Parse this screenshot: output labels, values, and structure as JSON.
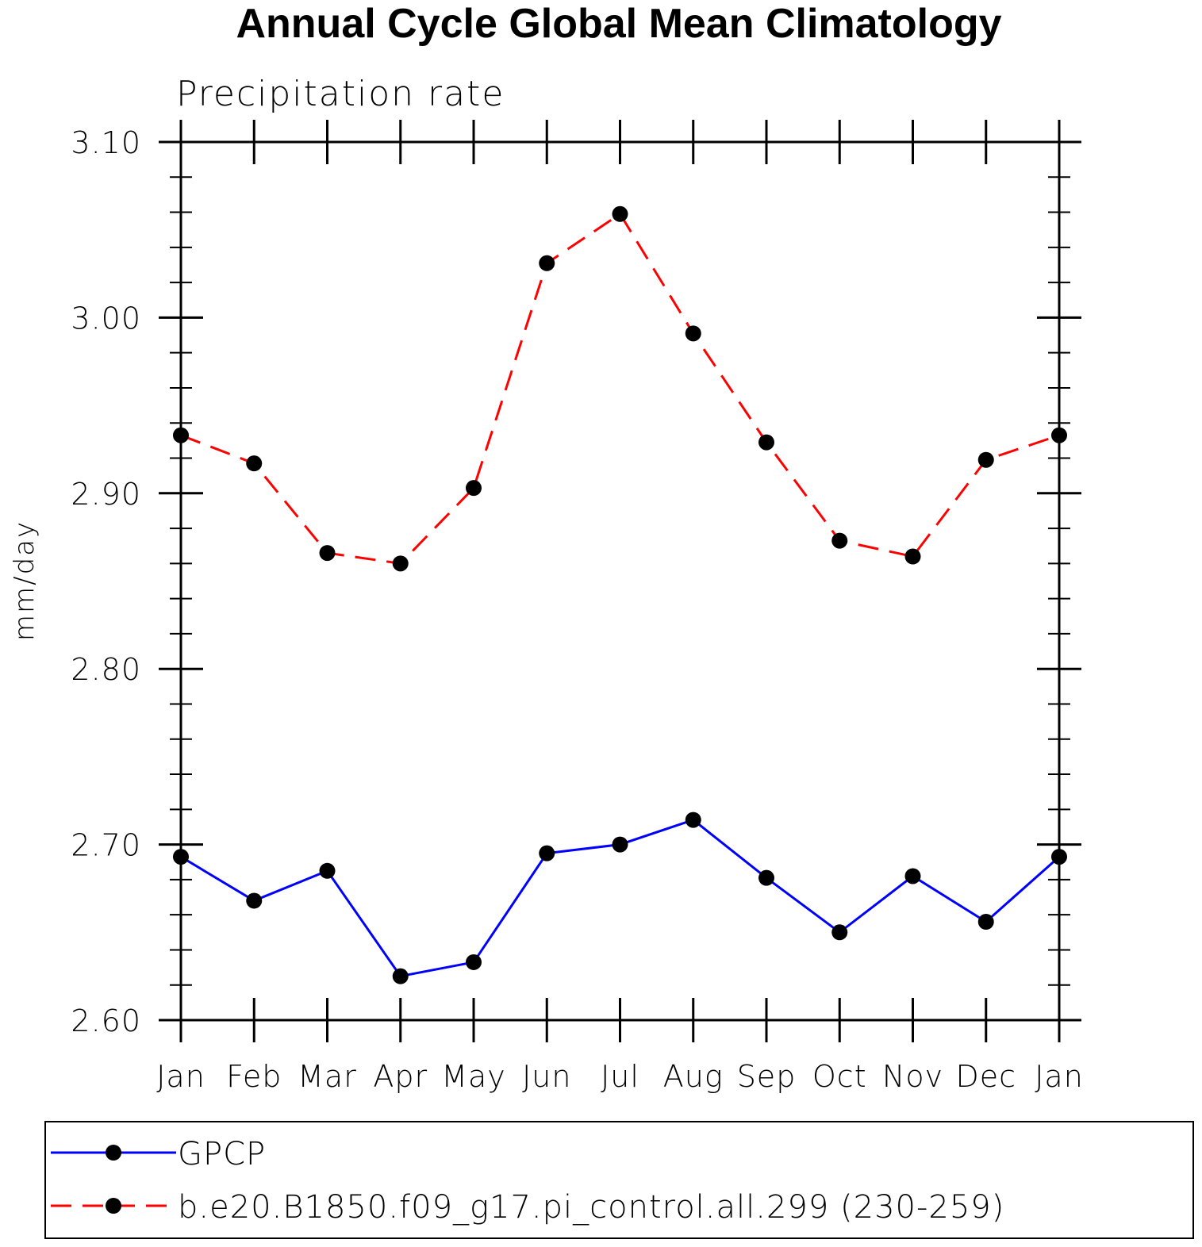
{
  "chart_data": {
    "type": "line",
    "title": "Annual Cycle Global Mean Climatology",
    "subtitle": "Precipitation rate",
    "xlabel": "",
    "ylabel": "mm/day",
    "categories": [
      "Jan",
      "Feb",
      "Mar",
      "Apr",
      "May",
      "Jun",
      "Jul",
      "Aug",
      "Sep",
      "Oct",
      "Nov",
      "Dec",
      "Jan"
    ],
    "ylim": [
      2.6,
      3.1
    ],
    "yticks": [
      "2.60",
      "2.70",
      "2.80",
      "2.90",
      "3.00",
      "3.10"
    ],
    "grid": false,
    "legend_position": "bottom",
    "series": [
      {
        "name": "GPCP",
        "color": "#0000ff",
        "dash": "solid",
        "values": [
          2.693,
          2.668,
          2.685,
          2.625,
          2.633,
          2.695,
          2.7,
          2.714,
          2.681,
          2.65,
          2.682,
          2.656,
          2.693
        ]
      },
      {
        "name": "b.e20.B1850.f09_g17.pi_control.all.299 (230-259)",
        "color": "#ff0000",
        "dash": "dashed",
        "values": [
          2.933,
          2.917,
          2.866,
          2.86,
          2.903,
          3.031,
          3.059,
          2.991,
          2.929,
          2.873,
          2.864,
          2.919,
          2.933
        ]
      }
    ]
  }
}
